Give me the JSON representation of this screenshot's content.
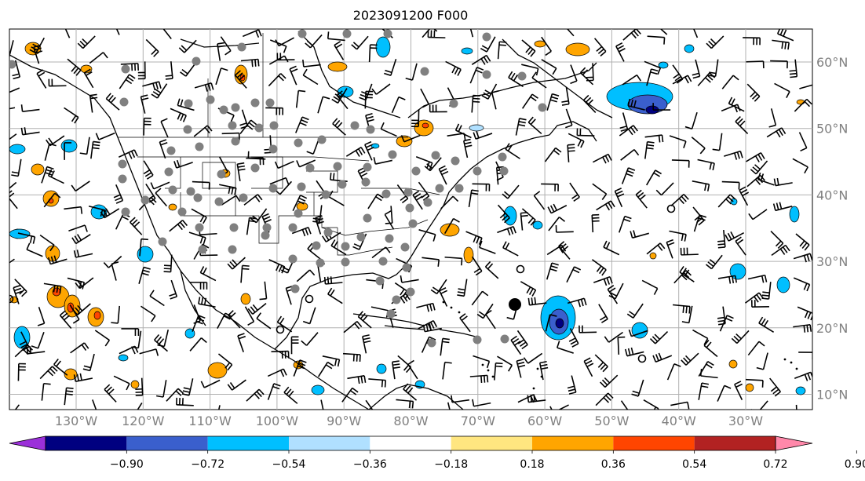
{
  "title": "2023091200 F000",
  "map": {
    "lon_labels": [
      "130°W",
      "120°W",
      "110°W",
      "100°W",
      "90°W",
      "80°W",
      "70°W",
      "60°W",
      "50°W",
      "40°W",
      "30°W"
    ],
    "lat_labels": [
      "60°N",
      "50°N",
      "40°N",
      "30°N",
      "20°N",
      "10°N"
    ],
    "extent": {
      "lon_min": -140,
      "lon_max": -20,
      "lat_min": 8,
      "lat_max": 65
    }
  },
  "colorbar": {
    "ticks": [
      "−0.90",
      "−0.72",
      "−0.54",
      "−0.36",
      "−0.18",
      "0.18",
      "0.36",
      "0.54",
      "0.72",
      "0.90"
    ],
    "colors": [
      "#9b30d9",
      "#000080",
      "#3a5fcd",
      "#00bfff",
      "#b0e0ff",
      "#ffffff",
      "#ffe680",
      "#ffa500",
      "#ff4500",
      "#b22222",
      "#ff88aa"
    ]
  },
  "observations": {
    "station_marker_color": "#808080",
    "large_marker_color": "#000000"
  }
}
